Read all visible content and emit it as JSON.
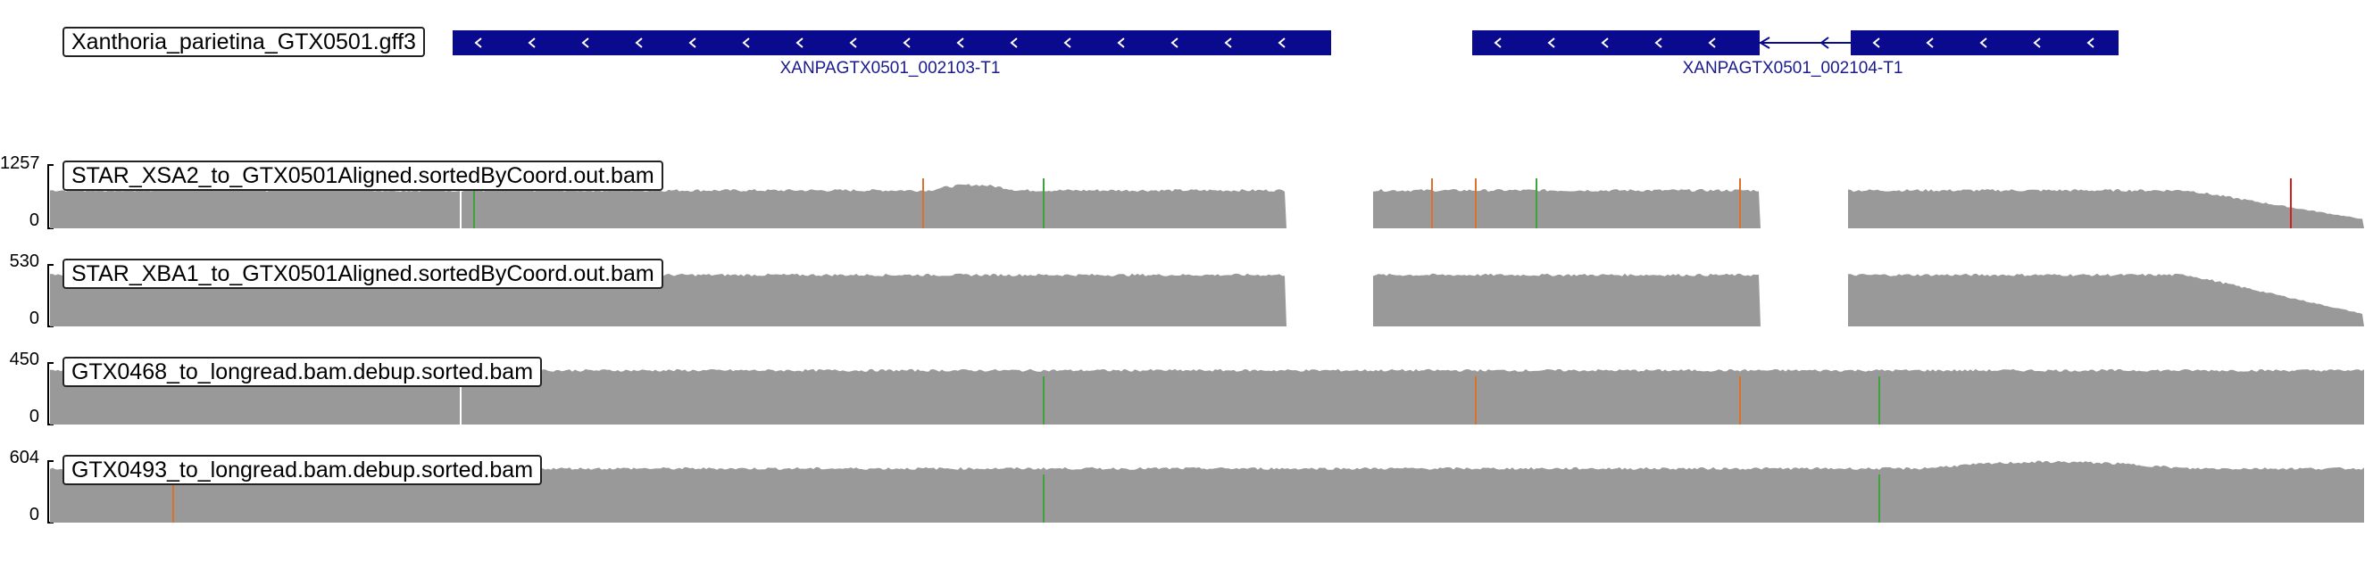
{
  "annotation_track": {
    "label": "Xanthoria_parietina_GTX0501.gff3",
    "genes": [
      {
        "name": "XANPAGTX0501_002103-T1",
        "strand": "-"
      },
      {
        "name": "XANPAGTX0501_002104-T1",
        "strand": "-"
      }
    ]
  },
  "coverage_tracks": [
    {
      "label": "STAR_XSA2_to_GTX0501Aligned.sortedByCoord.out.bam",
      "ymax": "1257",
      "ymin": "0",
      "bar_color": "#999999"
    },
    {
      "label": "STAR_XBA1_to_GTX0501Aligned.sortedByCoord.out.bam",
      "ymax": "530",
      "ymin": "0",
      "bar_color": "#999999"
    },
    {
      "label": "GTX0468_to_longread.bam.debup.sorted.bam",
      "ymax": "450",
      "ymin": "0",
      "bar_color": "#999999"
    },
    {
      "label": "GTX0493_to_longread.bam.debup.sorted.bam",
      "ymax": "604",
      "ymin": "0",
      "bar_color": "#999999"
    }
  ],
  "colors": {
    "gene_block": "#0a0a8f",
    "gene_text": "#1a1a8c",
    "coverage": "#999999",
    "snp_orange": "#d9722b",
    "snp_green": "#3fa23f",
    "snp_red": "#d62020",
    "snp_blue": "#2030c0"
  }
}
